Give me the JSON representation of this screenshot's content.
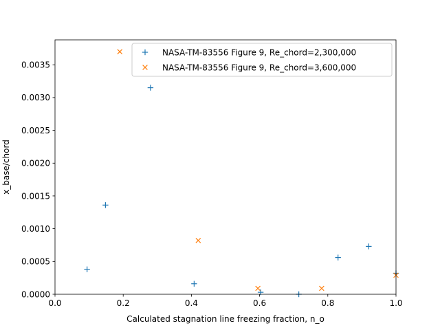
{
  "chart_data": {
    "type": "scatter",
    "title": "",
    "xlabel": "Calculated stagnation line freezing fraction, n_o",
    "ylabel": "x_base/chord",
    "xlim": [
      0.0,
      1.0
    ],
    "ylim": [
      0.0,
      0.00388
    ],
    "xticks": [
      0.0,
      0.2,
      0.4,
      0.6,
      0.8,
      1.0
    ],
    "xtick_labels": [
      "0.0",
      "0.2",
      "0.4",
      "0.6",
      "0.8",
      "1.0"
    ],
    "yticks": [
      0.0,
      0.0005,
      0.001,
      0.0015,
      0.002,
      0.0025,
      0.003,
      0.0035
    ],
    "ytick_labels": [
      "0.0000",
      "0.0005",
      "0.0010",
      "0.0015",
      "0.0020",
      "0.0025",
      "0.0030",
      "0.0035"
    ],
    "grid": false,
    "legend_position": "top-right",
    "series": [
      {
        "name": "NASA-TM-83556 Figure 9, Re_chord=2,300,000",
        "marker": "plus",
        "color": "#1f77b4",
        "points": [
          {
            "x": 0.094,
            "y": 0.00038
          },
          {
            "x": 0.148,
            "y": 0.00136
          },
          {
            "x": 0.28,
            "y": 0.00315
          },
          {
            "x": 0.408,
            "y": 0.00016
          },
          {
            "x": 0.603,
            "y": 3e-05
          },
          {
            "x": 0.715,
            "y": 0.0
          },
          {
            "x": 0.83,
            "y": 0.00056
          },
          {
            "x": 0.92,
            "y": 0.00073
          },
          {
            "x": 1.0,
            "y": 0.00032
          }
        ]
      },
      {
        "name": "NASA-TM-83556 Figure 9, Re_chord=3,600,000",
        "marker": "x",
        "color": "#ff7f0e",
        "points": [
          {
            "x": 0.19,
            "y": 0.0037
          },
          {
            "x": 0.42,
            "y": 0.00082
          },
          {
            "x": 0.595,
            "y": 9e-05
          },
          {
            "x": 0.782,
            "y": 9e-05
          },
          {
            "x": 1.0,
            "y": 0.00029
          }
        ]
      }
    ]
  }
}
